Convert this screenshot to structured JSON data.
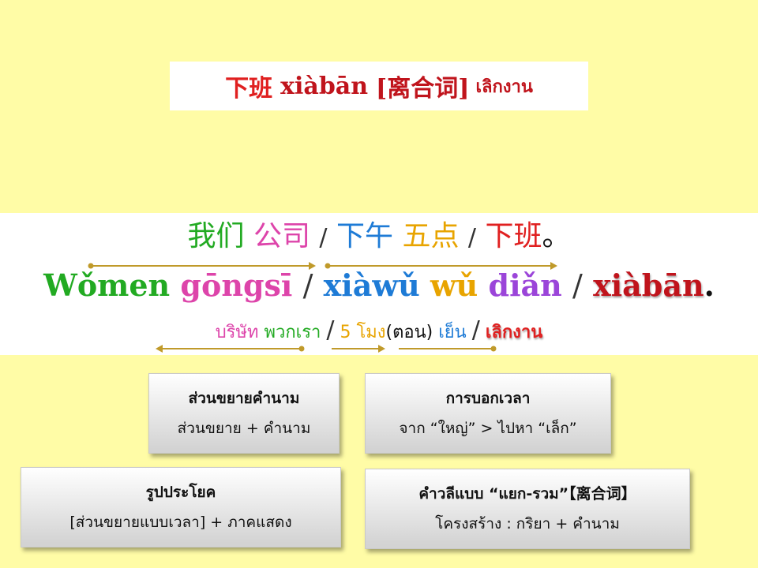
{
  "title": {
    "hanzi": "下班",
    "pinyin": "xiàbān",
    "tag": "[离合词]",
    "thai": "เลิกงาน"
  },
  "sentence": {
    "hanzi": [
      {
        "text": "我们",
        "color": "#22AA22"
      },
      {
        "text": "公司",
        "color": "#DD44AA"
      },
      {
        "text": "/",
        "sep": true
      },
      {
        "text": "下午",
        "color": "#1E7BD6"
      },
      {
        "text": "五点",
        "color": "#E8A400"
      },
      {
        "text": "/",
        "sep": true
      },
      {
        "text": "下班",
        "color": "#E02020"
      },
      {
        "text": "。",
        "color": "#111111"
      }
    ],
    "pinyin": [
      {
        "text": "Wǒmen",
        "color": "#22AA22"
      },
      {
        "text": "gōngsī",
        "color": "#DD44AA"
      },
      {
        "text": "/",
        "sep": true
      },
      {
        "text": "xiàwǔ",
        "color": "#1E7BD6"
      },
      {
        "text": "wǔ",
        "color": "#E8A400"
      },
      {
        "text": "diǎn",
        "color": "#9B45D9"
      },
      {
        "text": "/",
        "sep": true
      },
      {
        "text": "xiàbān",
        "color": "#C0141C",
        "shadow": true
      },
      {
        "text": ".",
        "color": "#111111"
      }
    ],
    "thai": [
      {
        "text": "บริษัท",
        "color": "#DD44AA"
      },
      {
        "text": "พวกเรา",
        "color": "#22AA22"
      },
      {
        "text": "/",
        "sep": true
      },
      {
        "text": "5",
        "color": "#E8A400"
      },
      {
        "text": "โมง",
        "color": "#E8A400"
      },
      {
        "text": "(ตอน)",
        "color": "#111111",
        "nospace": true
      },
      {
        "text": "เย็น",
        "color": "#1E7BD6"
      },
      {
        "text": "/",
        "sep": true
      },
      {
        "text": "เลิกงาน",
        "color": "#E02020",
        "shadow": true,
        "bold": true
      }
    ]
  },
  "arrow_color": "#C09A2A",
  "cards": [
    {
      "heading": "ส่วนขยายคำนาม",
      "body": "ส่วนขยาย + คำนาม"
    },
    {
      "heading": "การบอกเวลา",
      "body": "จาก “ใหญ่” > ไปหา “เล็ก”"
    },
    {
      "heading": "รูปประโยค",
      "body": "[ส่วนขยายแบบเวลา] + ภาคแสดง"
    },
    {
      "heading": "คำวลีแบบ “แยก-รวม”【离合词】",
      "body": "โครงสร้าง : กริยา + คำนาม"
    }
  ]
}
